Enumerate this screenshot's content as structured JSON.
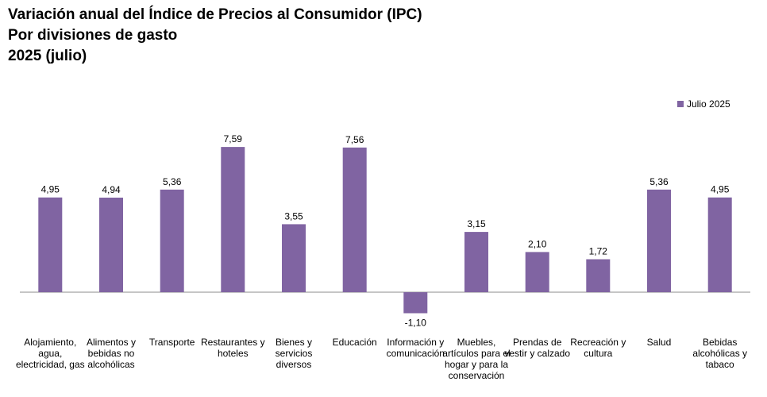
{
  "title_lines": [
    "Variación anual del Índice de Precios al Consumidor (IPC)",
    "Por divisiones de gasto",
    "2025 (julio)"
  ],
  "legend": {
    "label": "Julio 2025"
  },
  "colors": {
    "bar": "#8064a2",
    "axis": "#8c8c8c"
  },
  "chart_data": {
    "type": "bar",
    "title": "Variación anual del Índice de Precios al Consumidor (IPC)",
    "subtitle": "Por divisiones de gasto 2025 (julio)",
    "categories": [
      "Alojamiento, agua, electricidad, gas",
      "Alimentos y bebidas no alcohólicas",
      "Transporte",
      "Restaurantes y hoteles",
      "Bienes y servicios diversos",
      "Educación",
      "Información y comunicación",
      "Muebles, artículos para el hogar y para la conservación",
      "Prendas de vestir y calzado",
      "Recreación y cultura",
      "Salud",
      "Bebidas alcohólicas y tabaco"
    ],
    "series": [
      {
        "name": "Julio 2025",
        "values": [
          4.95,
          4.94,
          5.36,
          7.59,
          3.55,
          7.56,
          -1.1,
          3.15,
          2.1,
          1.72,
          5.36,
          4.95
        ],
        "labels": [
          "4,95",
          "4,94",
          "5,36",
          "7,59",
          "3,55",
          "7,56",
          "-1,10",
          "3,15",
          "2,10",
          "1,72",
          "5,36",
          "4,95"
        ]
      }
    ],
    "legend_position": "top-right",
    "grid": false
  }
}
